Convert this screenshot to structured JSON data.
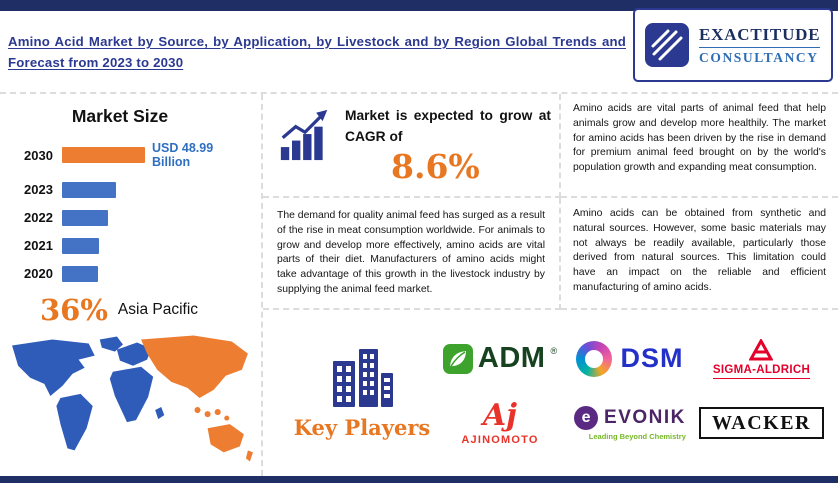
{
  "colors": {
    "navy": "#1f2f66",
    "brand_blue": "#2b3990",
    "bar_blue": "#4472C4",
    "accent_orange": "#E87722",
    "value_blue": "#2f6fc1"
  },
  "header": {
    "title": "Amino Acid Market by Source, by Application, by Livestock and by Region Global Trends and Forecast from 2023 to 2030",
    "logo_line1": "EXACTITUDE",
    "logo_line2": "CONSULTANCY"
  },
  "market_size": {
    "heading": "Market Size"
  },
  "chart_data": {
    "type": "bar",
    "orientation": "horizontal",
    "title": "Market Size",
    "categories": [
      "2030",
      "2023",
      "2022",
      "2021",
      "2020"
    ],
    "values": [
      48.99,
      32,
      27,
      22,
      21
    ],
    "unit": "USD Billion",
    "data_label": "USD 48.99 Billion",
    "bar_colors": [
      "#ED7D31",
      "#4472C4",
      "#4472C4",
      "#4472C4",
      "#4472C4"
    ],
    "xlim": [
      0,
      55
    ],
    "grid": false,
    "legend": "none"
  },
  "region_highlight": {
    "share": "36%",
    "label": "Asia Pacific"
  },
  "cagr": {
    "prefix": "Market is expected to grow at CAGR of",
    "value": "8.6%"
  },
  "paragraphs": {
    "growth": "Amino acids are vital parts of animal feed that help animals grow and develop more healthily. The market for amino acids has been driven by the rise in demand for premium animal feed brought on by the world's population growth and expanding meat consumption.",
    "demand": "The demand for quality animal feed has surged as a result of the rise in meat consumption worldwide. For animals to grow and develop more effectively, amino acids are vital parts of their diet. Manufacturers of amino acids might take advantage of this growth in the livestock industry by supplying the animal feed market.",
    "sources": "Amino acids can be obtained from synthetic and natural sources. However, some basic materials may not always be readily available, particularly those derived from natural sources. This limitation could have an impact on the reliable and efficient manufacturing of amino acids."
  },
  "key_players": {
    "heading": "Key Players",
    "adm": "ADM",
    "reg": "®",
    "dsm": "DSM",
    "sigma": "SIGMA-ALDRICH",
    "ajinomoto_script": "Aj",
    "ajinomoto": "AJINOMOTO",
    "evonik_mark": "e",
    "evonik": "EVONIK",
    "evonik_tagline": "Leading Beyond Chemistry",
    "wacker": "WACKER"
  }
}
